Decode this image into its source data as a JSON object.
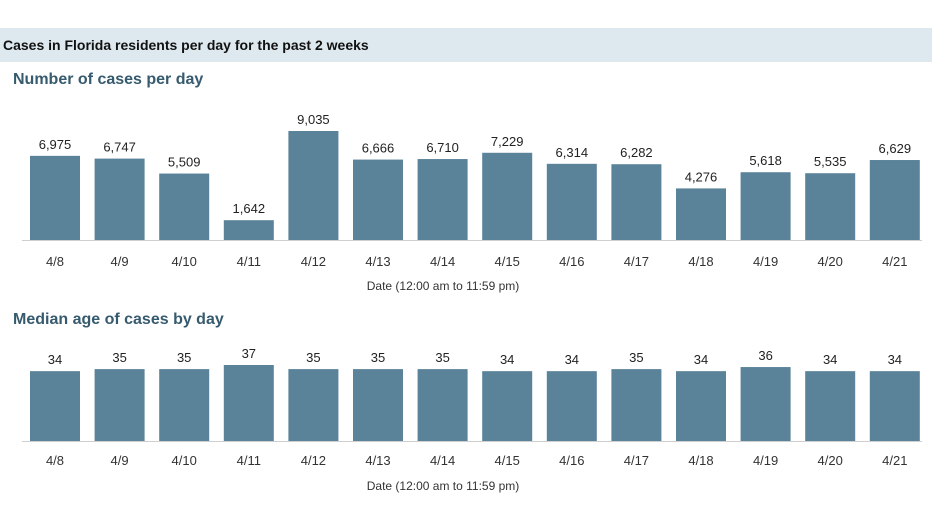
{
  "header": {
    "title": "Cases in Florida residents per day for the past 2 weeks"
  },
  "chart_data": [
    {
      "type": "bar",
      "title": "Number of cases per day",
      "xlabel": "Date (12:00 am to 11:59 pm)",
      "ylabel": "",
      "categories": [
        "4/8",
        "4/9",
        "4/10",
        "4/11",
        "4/12",
        "4/13",
        "4/14",
        "4/15",
        "4/16",
        "4/17",
        "4/18",
        "4/19",
        "4/20",
        "4/21"
      ],
      "values": [
        6975,
        6747,
        5509,
        1642,
        9035,
        6666,
        6710,
        7229,
        6314,
        6282,
        4276,
        5618,
        5535,
        6629
      ],
      "value_labels": [
        "6,975",
        "6,747",
        "5,509",
        "1,642",
        "9,035",
        "6,666",
        "6,710",
        "7,229",
        "6,314",
        "6,282",
        "4,276",
        "5,618",
        "5,535",
        "6,629"
      ],
      "ylim": [
        0,
        9035
      ],
      "grid": false,
      "color": "#5a8299"
    },
    {
      "type": "bar",
      "title": "Median age of cases by day",
      "xlabel": "Date (12:00 am to 11:59 pm)",
      "ylabel": "",
      "categories": [
        "4/8",
        "4/9",
        "4/10",
        "4/11",
        "4/12",
        "4/13",
        "4/14",
        "4/15",
        "4/16",
        "4/17",
        "4/18",
        "4/19",
        "4/20",
        "4/21"
      ],
      "values": [
        34,
        35,
        35,
        37,
        35,
        35,
        35,
        34,
        34,
        35,
        34,
        36,
        34,
        34
      ],
      "value_labels": [
        "34",
        "35",
        "35",
        "37",
        "35",
        "35",
        "35",
        "34",
        "34",
        "35",
        "34",
        "36",
        "34",
        "34"
      ],
      "ylim": [
        0,
        37
      ],
      "grid": false,
      "color": "#5a8299"
    }
  ]
}
